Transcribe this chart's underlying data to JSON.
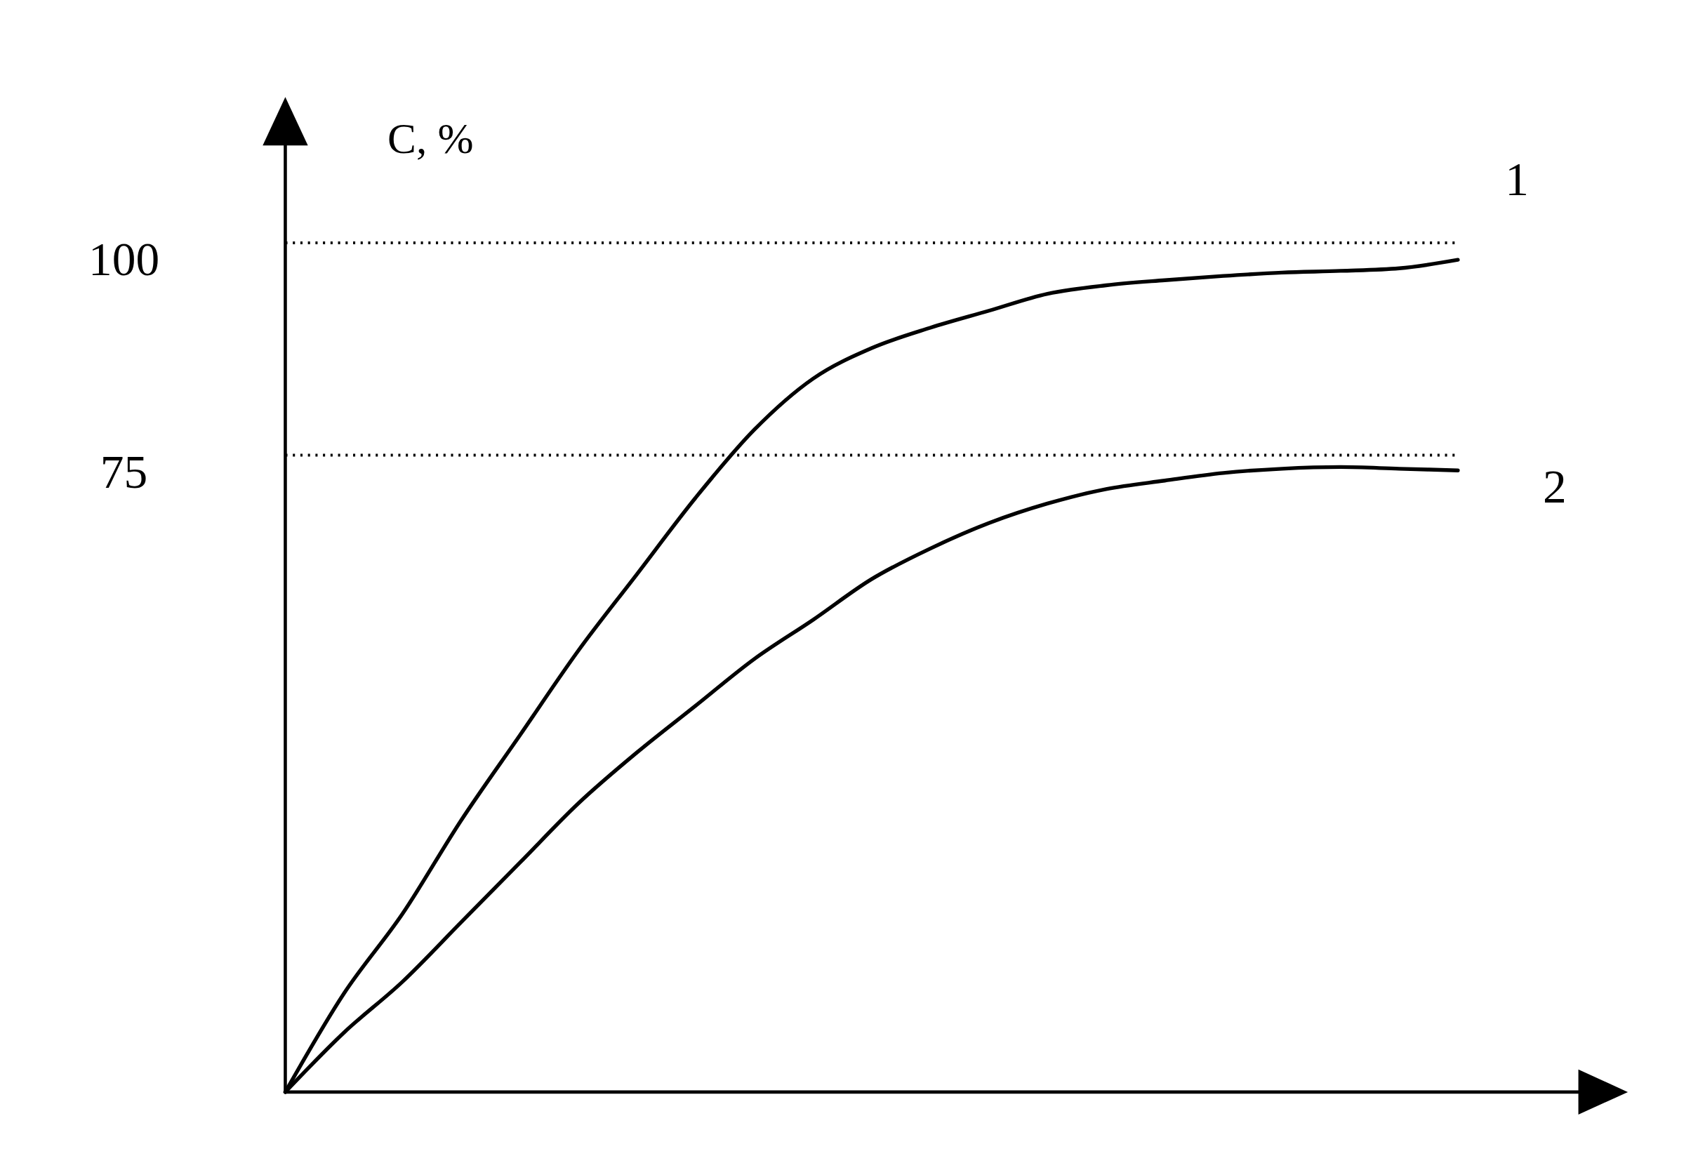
{
  "chart_data": {
    "type": "line",
    "ylabel": "C, %",
    "categories": [
      null,
      null,
      null,
      null,
      null,
      null,
      null,
      null,
      null,
      null,
      null,
      null,
      null,
      null,
      null,
      null,
      null,
      null,
      null,
      null,
      null
    ],
    "series": [
      {
        "name": "1",
        "color": "#000000",
        "values": [
          0,
          11.6,
          21,
          32,
          42,
          52,
          61,
          70,
          78,
          84,
          87.6,
          90,
          92,
          94,
          95,
          95.6,
          96.1,
          96.5,
          96.7,
          97,
          98
        ]
      },
      {
        "name": "2",
        "color": "#000000",
        "values": [
          0,
          7,
          13,
          20,
          27,
          34,
          40,
          45.5,
          51,
          55.6,
          60.4,
          64,
          67,
          69.3,
          71,
          72,
          72.9,
          73.4,
          73.6,
          73.4,
          73.2
        ]
      }
    ],
    "ylim": [
      0,
      114
    ],
    "yticks": [
      75,
      100
    ],
    "ref_lines": [
      {
        "axis": "y",
        "value": 100,
        "line_style": "dotted"
      },
      {
        "axis": "y",
        "value": 75,
        "line_style": "dotted"
      }
    ],
    "grid": false,
    "marker": "none",
    "line_style": "solid"
  }
}
